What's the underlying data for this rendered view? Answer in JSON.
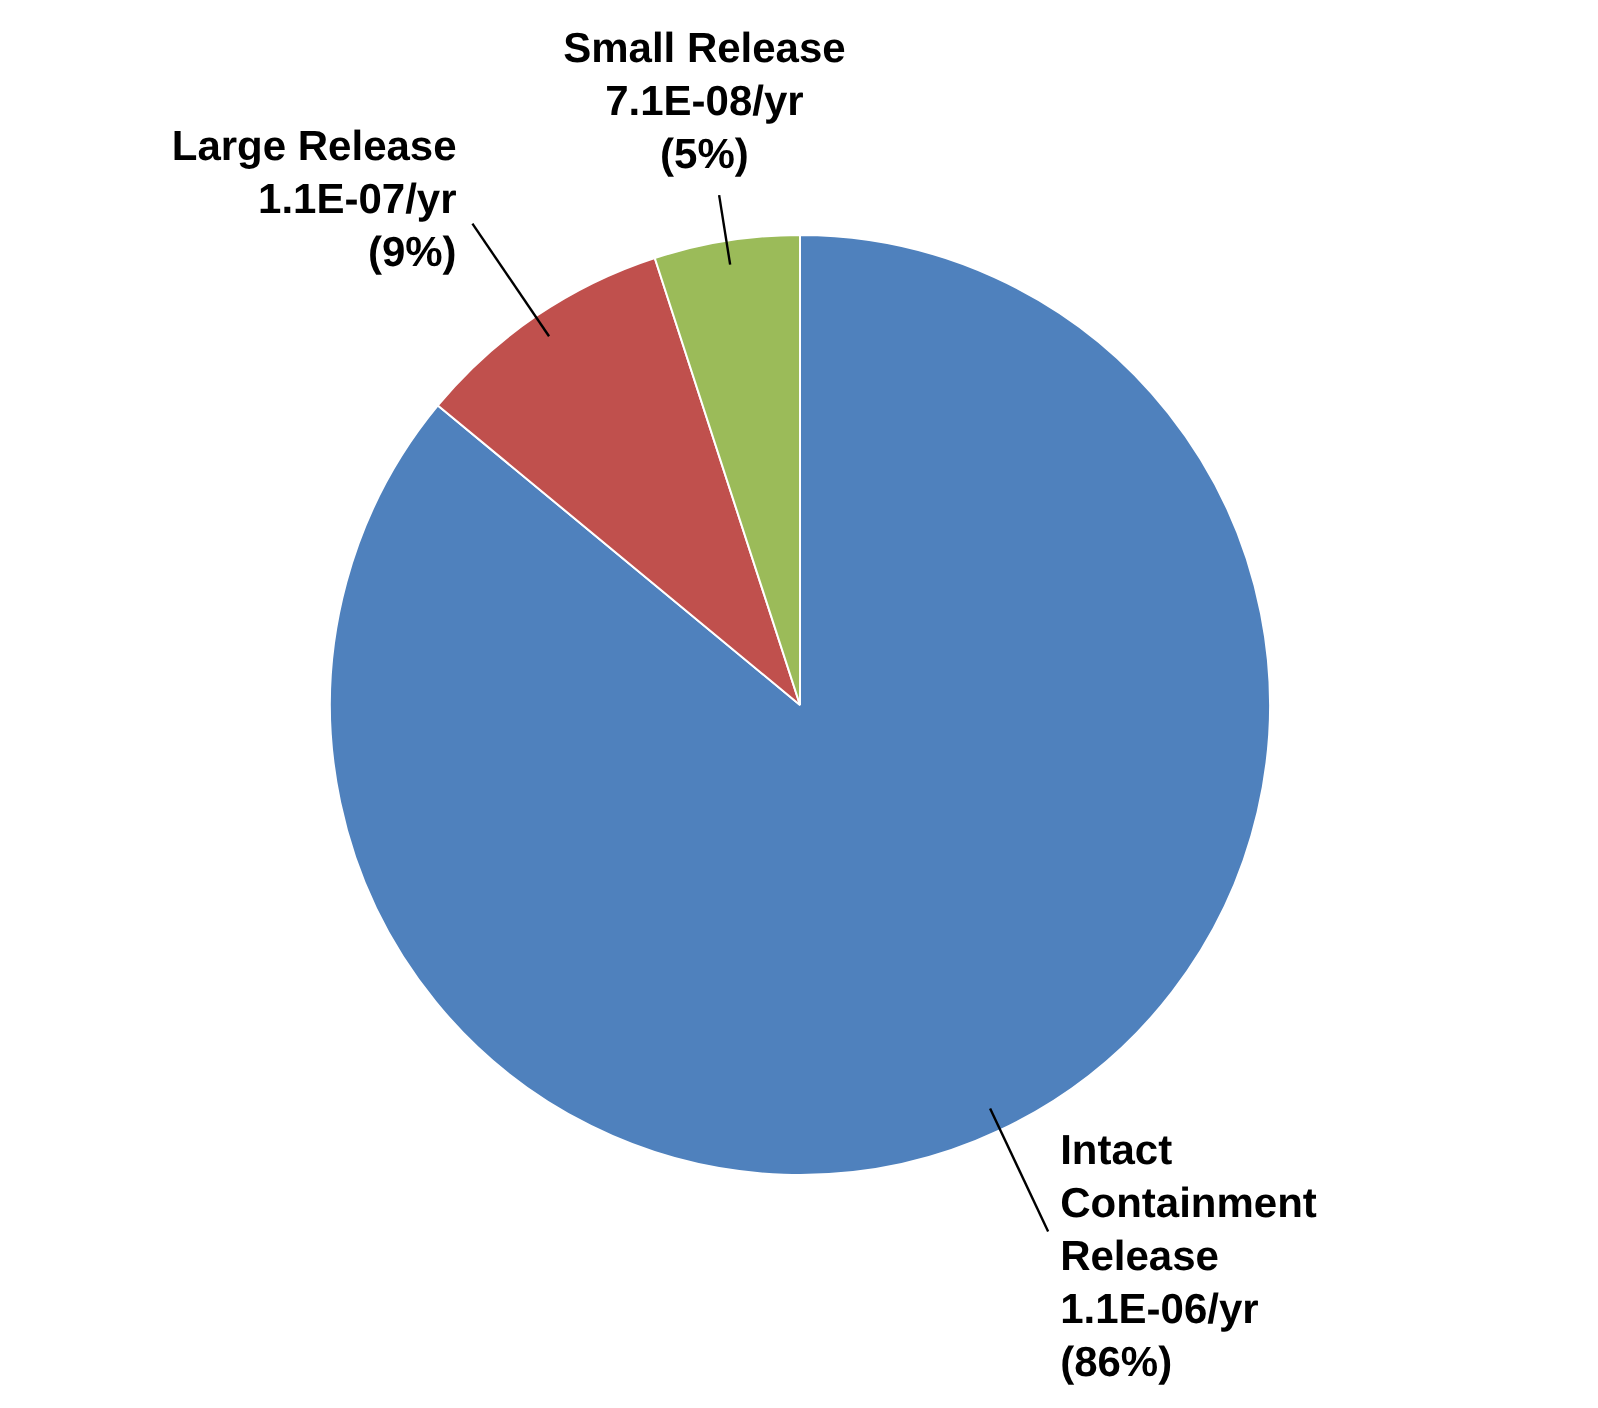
{
  "chart_data": {
    "type": "pie",
    "categories": [
      "Intact Containment Release",
      "Large Release",
      "Small Release"
    ],
    "values": [
      86,
      9,
      5
    ],
    "colors": [
      "#4f81bd",
      "#c0504d",
      "#9bbb59"
    ],
    "value_labels": [
      "1.1E-06/yr (86%)",
      "1.1E-07/yr (9%)",
      "7.1E-08/yr (5%)"
    ]
  }
}
